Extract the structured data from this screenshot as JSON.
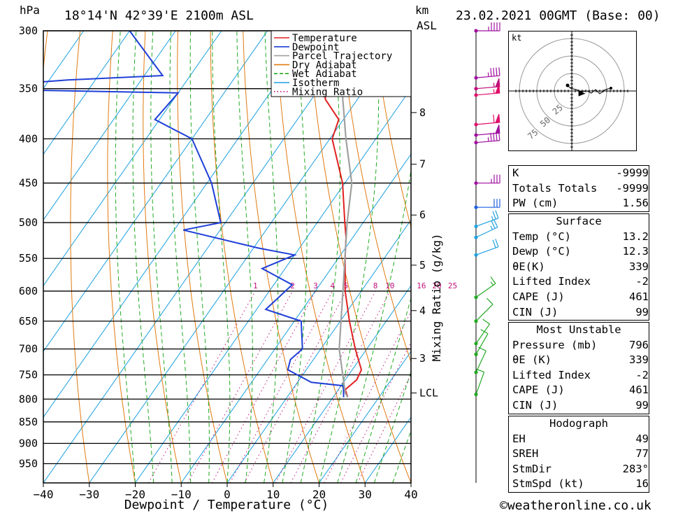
{
  "header": {
    "hpa_label": "hPa",
    "location": "18°14'N  42°39'E  2100m  ASL",
    "km_label": "km",
    "asl_label": "ASL",
    "datetime": "23.02.2021  00GMT  (Base: 00)"
  },
  "chart_data": {
    "type": "line",
    "subtype": "skew-T log-P",
    "xlabel": "Dewpoint  /  Temperature  (°C)",
    "ylabel": "hPa",
    "x_ticks": [
      "−40",
      "−30",
      "−20",
      "−10",
      "0",
      "10",
      "20",
      "30",
      "40"
    ],
    "xlim": [
      -40,
      40
    ],
    "pressure_levels": [
      300,
      350,
      400,
      450,
      500,
      550,
      600,
      650,
      700,
      750,
      800,
      850,
      900,
      950
    ],
    "ylim": [
      300,
      1000
    ],
    "km_ticks": [
      {
        "label": "8",
        "p": 373
      },
      {
        "label": "7",
        "p": 428
      },
      {
        "label": "6",
        "p": 490
      },
      {
        "label": "5",
        "p": 560
      },
      {
        "label": "4",
        "p": 632
      },
      {
        "label": "3",
        "p": 718
      },
      {
        "label": "LCL",
        "p": 787
      }
    ],
    "mixing_ratio_label": "Mixing Ratio (g/kg)",
    "mixing_ratio_ticks": [
      "1",
      "2",
      "3",
      "4",
      "5",
      "8",
      "10",
      "16",
      "20",
      "25"
    ],
    "mixing_ratio_values": [
      1,
      2,
      3,
      4,
      5,
      8,
      10,
      16,
      20,
      25
    ],
    "legend": [
      {
        "name": "Temperature",
        "color": "#e02020",
        "style": "solid"
      },
      {
        "name": "Dewpoint",
        "color": "#1f3fd8",
        "style": "solid"
      },
      {
        "name": "Parcel Trajectory",
        "color": "#a0a0a0",
        "style": "solid"
      },
      {
        "name": "Dry Adiabat",
        "color": "#e07a10",
        "style": "solid"
      },
      {
        "name": "Wet Adiabat",
        "color": "#22aa22",
        "style": "dashed"
      },
      {
        "name": "Isotherm",
        "color": "#1aa0e0",
        "style": "solid"
      },
      {
        "name": "Mixing Ratio",
        "color": "#c0107a",
        "style": "dotted"
      }
    ],
    "series": [
      {
        "name": "Temperature",
        "color": "#e02020",
        "points": [
          {
            "p": 796,
            "t": 13.2
          },
          {
            "p": 780,
            "t": 11.5
          },
          {
            "p": 760,
            "t": 12.5
          },
          {
            "p": 740,
            "t": 12
          },
          {
            "p": 700,
            "t": 7.5
          },
          {
            "p": 650,
            "t": 2
          },
          {
            "p": 600,
            "t": -3.5
          },
          {
            "p": 550,
            "t": -8.5
          },
          {
            "p": 520,
            "t": -11.5
          },
          {
            "p": 500,
            "t": -14
          },
          {
            "p": 450,
            "t": -20.5
          },
          {
            "p": 400,
            "t": -29.5
          },
          {
            "p": 380,
            "t": -31
          },
          {
            "p": 360,
            "t": -37
          },
          {
            "p": 354,
            "t": -38
          },
          {
            "p": 350,
            "t": -36
          },
          {
            "p": 300,
            "t": -32
          }
        ]
      },
      {
        "name": "Dewpoint",
        "color": "#1f3fd8",
        "points": [
          {
            "p": 796,
            "t": 12.3
          },
          {
            "p": 772,
            "t": 10.5
          },
          {
            "p": 765,
            "t": 3
          },
          {
            "p": 740,
            "t": -4
          },
          {
            "p": 720,
            "t": -5
          },
          {
            "p": 700,
            "t": -4
          },
          {
            "p": 650,
            "t": -8.5
          },
          {
            "p": 630,
            "t": -18
          },
          {
            "p": 590,
            "t": -16
          },
          {
            "p": 565,
            "t": -25
          },
          {
            "p": 545,
            "t": -20
          },
          {
            "p": 535,
            "t": -29
          },
          {
            "p": 510,
            "t": -48
          },
          {
            "p": 500,
            "t": -41
          },
          {
            "p": 450,
            "t": -49
          },
          {
            "p": 400,
            "t": -60
          },
          {
            "p": 380,
            "t": -71
          },
          {
            "p": 354,
            "t": -70
          },
          {
            "p": 350,
            "t": -120
          },
          {
            "p": 342,
            "t": -96
          },
          {
            "p": 338,
            "t": -76
          },
          {
            "p": 300,
            "t": -90
          }
        ]
      },
      {
        "name": "Parcel Trajectory",
        "color": "#a0a0a0",
        "points": [
          {
            "p": 796,
            "t": 13.2
          },
          {
            "p": 787,
            "t": 12
          },
          {
            "p": 700,
            "t": 4
          },
          {
            "p": 600,
            "t": -4
          },
          {
            "p": 500,
            "t": -13.5
          },
          {
            "p": 450,
            "t": -18.5
          },
          {
            "p": 400,
            "t": -26.5
          },
          {
            "p": 350,
            "t": -35
          },
          {
            "p": 300,
            "t": -47
          }
        ]
      }
    ],
    "wind_profile": [
      {
        "p": 300,
        "dir": 270,
        "spd": 45,
        "color": "#a010a0"
      },
      {
        "p": 340,
        "dir": 265,
        "spd": 45,
        "color": "#a010a0"
      },
      {
        "p": 350,
        "dir": 265,
        "spd": 55,
        "color": "#c0107a"
      },
      {
        "p": 356,
        "dir": 265,
        "spd": 55,
        "color": "#e0106a"
      },
      {
        "p": 385,
        "dir": 265,
        "spd": 60,
        "color": "#e0106a"
      },
      {
        "p": 396,
        "dir": 265,
        "spd": 50,
        "color": "#a010a0"
      },
      {
        "p": 404,
        "dir": 265,
        "spd": 45,
        "color": "#a010a0"
      },
      {
        "p": 450,
        "dir": 270,
        "spd": 35,
        "color": "#a010a0"
      },
      {
        "p": 480,
        "dir": 270,
        "spd": 30,
        "color": "#2060e0"
      },
      {
        "p": 505,
        "dir": 250,
        "spd": 25,
        "color": "#20a0e0"
      },
      {
        "p": 520,
        "dir": 245,
        "spd": 25,
        "color": "#20a0e0"
      },
      {
        "p": 545,
        "dir": 250,
        "spd": 20,
        "color": "#20a0e0"
      },
      {
        "p": 610,
        "dir": 235,
        "spd": 15,
        "color": "#22aa22"
      },
      {
        "p": 650,
        "dir": 225,
        "spd": 10,
        "color": "#22aa22"
      },
      {
        "p": 690,
        "dir": 215,
        "spd": 10,
        "color": "#22aa22"
      },
      {
        "p": 710,
        "dir": 210,
        "spd": 10,
        "color": "#22aa22"
      },
      {
        "p": 745,
        "dir": 205,
        "spd": 10,
        "color": "#22aa22"
      },
      {
        "p": 790,
        "dir": 200,
        "spd": 10,
        "color": "#22aa22"
      }
    ]
  },
  "hodograph": {
    "unit_label": "kt",
    "ring_labels": [
      "25",
      "50",
      "75"
    ],
    "ring_values": [
      25,
      50,
      75
    ],
    "trace": [
      [
        -6,
        8
      ],
      [
        -2,
        4
      ],
      [
        6,
        2
      ],
      [
        14,
        -1
      ],
      [
        22,
        0
      ],
      [
        28,
        -3
      ],
      [
        34,
        2
      ],
      [
        40,
        -4
      ],
      [
        48,
        2
      ],
      [
        56,
        4
      ]
    ],
    "storm_motion": {
      "dir": 283,
      "spd": 16
    }
  },
  "indices": {
    "k": {
      "label": "K",
      "value": "-9999"
    },
    "tt": {
      "label": "Totals Totals",
      "value": "-9999"
    },
    "pw": {
      "label": "PW (cm)",
      "value": "1.56"
    }
  },
  "surface": {
    "title": "Surface",
    "temp": {
      "label": "Temp (°C)",
      "value": "13.2"
    },
    "dewp": {
      "label": "Dewp (°C)",
      "value": "12.3"
    },
    "thetae": {
      "label": "θE(K)",
      "value": "339"
    },
    "li": {
      "label": "Lifted Index",
      "value": "-2"
    },
    "cape": {
      "label": "CAPE (J)",
      "value": "461"
    },
    "cin": {
      "label": "CIN (J)",
      "value": "99"
    }
  },
  "unstable": {
    "title": "Most Unstable",
    "pressure": {
      "label": "Pressure (mb)",
      "value": "796"
    },
    "thetae": {
      "label": "θE (K)",
      "value": "339"
    },
    "li": {
      "label": "Lifted Index",
      "value": "-2"
    },
    "cape": {
      "label": "CAPE (J)",
      "value": "461"
    },
    "cin": {
      "label": "CIN (J)",
      "value": "99"
    }
  },
  "hodo_table": {
    "title": "Hodograph",
    "eh": {
      "label": "EH",
      "value": "49"
    },
    "sreh": {
      "label": "SREH",
      "value": "77"
    },
    "stmdir": {
      "label": "StmDir",
      "value": "283°"
    },
    "stmspd": {
      "label": "StmSpd (kt)",
      "value": "16"
    }
  },
  "footer": {
    "credit": "©weatheronline.co.uk"
  }
}
